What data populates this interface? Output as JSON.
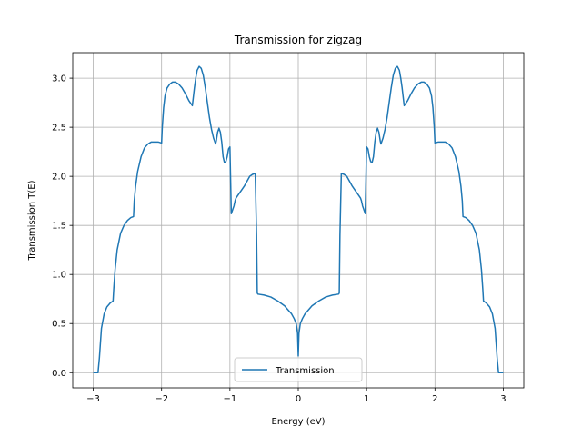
{
  "chart_data": {
    "type": "line",
    "title": "Transmission for zigzag",
    "xlabel": "Energy (eV)",
    "ylabel": "Transmission T(E)",
    "xlim": [
      -3.3,
      3.3
    ],
    "ylim": [
      -0.155,
      3.26
    ],
    "xticks": [
      -3,
      -2,
      -1,
      0,
      1,
      2,
      3
    ],
    "xtick_labels": [
      "−3",
      "−2",
      "−1",
      "0",
      "1",
      "2",
      "3"
    ],
    "yticks": [
      0.0,
      0.5,
      1.0,
      1.5,
      2.0,
      2.5,
      3.0
    ],
    "ytick_labels": [
      "0.0",
      "0.5",
      "1.0",
      "1.5",
      "2.0",
      "2.5",
      "3.0"
    ],
    "grid": true,
    "legend": {
      "placement": "lower center"
    },
    "series": [
      {
        "name": "Transmission",
        "color": "#1f77b4",
        "x": [
          -3.0,
          -2.93,
          -2.91,
          -2.88,
          -2.84,
          -2.8,
          -2.75,
          -2.71,
          -2.7,
          -2.68,
          -2.65,
          -2.6,
          -2.55,
          -2.5,
          -2.45,
          -2.41,
          -2.4,
          -2.38,
          -2.35,
          -2.3,
          -2.25,
          -2.2,
          -2.15,
          -2.1,
          -2.05,
          -2.0,
          -1.99,
          -1.97,
          -1.95,
          -1.92,
          -1.88,
          -1.84,
          -1.8,
          -1.75,
          -1.7,
          -1.65,
          -1.6,
          -1.55,
          -1.52,
          -1.5,
          -1.48,
          -1.45,
          -1.42,
          -1.39,
          -1.36,
          -1.33,
          -1.3,
          -1.27,
          -1.24,
          -1.21,
          -1.2,
          -1.18,
          -1.16,
          -1.14,
          -1.12,
          -1.1,
          -1.08,
          -1.06,
          -1.04,
          -1.02,
          -1.0,
          -0.98,
          -0.96,
          -0.94,
          -0.935,
          -0.93,
          -0.925,
          -0.91,
          -0.87,
          -0.83,
          -0.79,
          -0.75,
          -0.71,
          -0.67,
          -0.63,
          -0.61,
          -0.6,
          -0.59,
          -0.5,
          -0.4,
          -0.3,
          -0.2,
          -0.15,
          -0.1,
          -0.06,
          -0.03,
          -0.01,
          0.0,
          0.01,
          0.03,
          0.06,
          0.1,
          0.15,
          0.2,
          0.3,
          0.4,
          0.5,
          0.59,
          0.6,
          0.61,
          0.63,
          0.67,
          0.71,
          0.75,
          0.79,
          0.83,
          0.87,
          0.91,
          0.925,
          0.93,
          0.935,
          0.94,
          0.96,
          0.98,
          1.0,
          1.02,
          1.04,
          1.06,
          1.08,
          1.1,
          1.12,
          1.14,
          1.16,
          1.18,
          1.2,
          1.21,
          1.24,
          1.27,
          1.3,
          1.33,
          1.36,
          1.39,
          1.42,
          1.45,
          1.48,
          1.5,
          1.52,
          1.55,
          1.6,
          1.65,
          1.7,
          1.75,
          1.8,
          1.84,
          1.88,
          1.92,
          1.95,
          1.97,
          1.99,
          2.0,
          2.05,
          2.1,
          2.15,
          2.2,
          2.25,
          2.3,
          2.35,
          2.38,
          2.4,
          2.41,
          2.45,
          2.5,
          2.55,
          2.6,
          2.65,
          2.68,
          2.7,
          2.71,
          2.75,
          2.8,
          2.84,
          2.88,
          2.91,
          2.93,
          3.0
        ],
        "y": [
          0.0,
          0.0,
          0.15,
          0.45,
          0.6,
          0.67,
          0.71,
          0.73,
          0.85,
          1.05,
          1.25,
          1.42,
          1.5,
          1.55,
          1.58,
          1.59,
          1.75,
          1.9,
          2.05,
          2.2,
          2.29,
          2.33,
          2.35,
          2.35,
          2.35,
          2.34,
          2.5,
          2.7,
          2.82,
          2.9,
          2.94,
          2.96,
          2.96,
          2.94,
          2.9,
          2.84,
          2.77,
          2.72,
          2.9,
          3.0,
          3.08,
          3.12,
          3.1,
          3.03,
          2.9,
          2.75,
          2.6,
          2.48,
          2.39,
          2.33,
          2.36,
          2.45,
          2.49,
          2.45,
          2.35,
          2.2,
          2.14,
          2.15,
          2.2,
          2.28,
          2.3,
          1.62,
          1.66,
          1.7,
          1.72,
          1.73,
          1.75,
          1.78,
          1.82,
          1.86,
          1.9,
          1.95,
          2.0,
          2.02,
          2.03,
          1.4,
          0.81,
          0.8,
          0.79,
          0.77,
          0.73,
          0.68,
          0.64,
          0.6,
          0.55,
          0.5,
          0.4,
          0.17,
          0.4,
          0.5,
          0.55,
          0.6,
          0.64,
          0.68,
          0.73,
          0.77,
          0.79,
          0.8,
          0.81,
          1.4,
          2.03,
          2.02,
          2.0,
          1.95,
          1.9,
          1.86,
          1.82,
          1.78,
          1.75,
          1.73,
          1.72,
          1.7,
          1.66,
          1.62,
          2.3,
          2.28,
          2.2,
          2.15,
          2.14,
          2.2,
          2.35,
          2.45,
          2.49,
          2.45,
          2.36,
          2.33,
          2.39,
          2.48,
          2.6,
          2.75,
          2.9,
          3.03,
          3.1,
          3.12,
          3.08,
          3.0,
          2.9,
          2.72,
          2.77,
          2.84,
          2.9,
          2.94,
          2.96,
          2.96,
          2.94,
          2.9,
          2.82,
          2.7,
          2.5,
          2.34,
          2.35,
          2.35,
          2.35,
          2.33,
          2.29,
          2.2,
          2.05,
          1.9,
          1.75,
          1.59,
          1.58,
          1.55,
          1.5,
          1.42,
          1.25,
          1.05,
          0.85,
          0.73,
          0.71,
          0.67,
          0.6,
          0.45,
          0.15,
          0.0,
          0.0
        ]
      }
    ]
  }
}
